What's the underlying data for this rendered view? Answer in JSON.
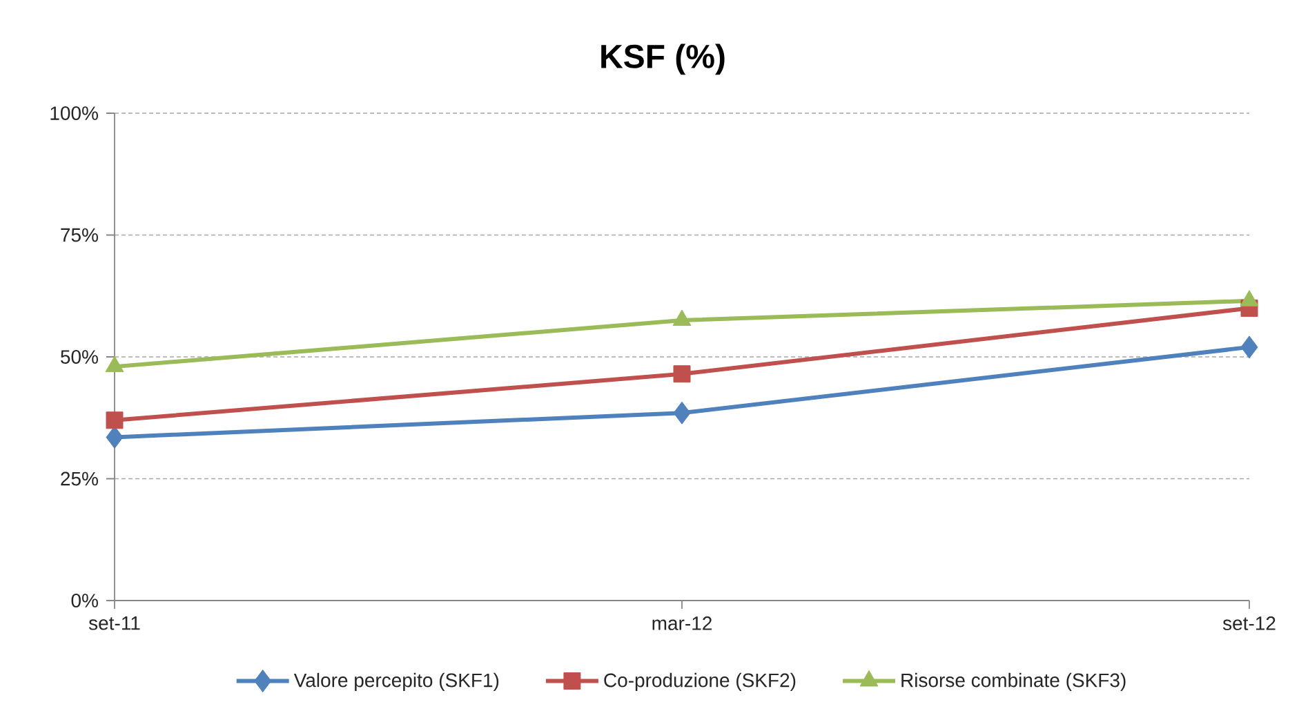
{
  "chart_data": {
    "type": "line",
    "title": "KSF (%)",
    "categories": [
      "set-11",
      "mar-12",
      "set-12"
    ],
    "series": [
      {
        "name": "Valore percepito (SKF1)",
        "color": "#4f81bd",
        "marker": "diamond",
        "values": [
          33.5,
          38.5,
          52
        ]
      },
      {
        "name": "Co-produzione (SKF2)",
        "color": "#c0504d",
        "marker": "square",
        "values": [
          37,
          46.5,
          60
        ]
      },
      {
        "name": "Risorse combinate (SKF3)",
        "color": "#9bbb59",
        "marker": "triangle",
        "values": [
          48,
          57.5,
          61.5
        ]
      }
    ],
    "ylim": [
      0,
      100
    ],
    "yticks": [
      {
        "value": 0,
        "label": "0%"
      },
      {
        "value": 25,
        "label": "25%"
      },
      {
        "value": 50,
        "label": "50%"
      },
      {
        "value": 75,
        "label": "75%"
      },
      {
        "value": 100,
        "label": "100%"
      }
    ],
    "grid": "y",
    "legend": "bottom",
    "line_style": "solid"
  }
}
